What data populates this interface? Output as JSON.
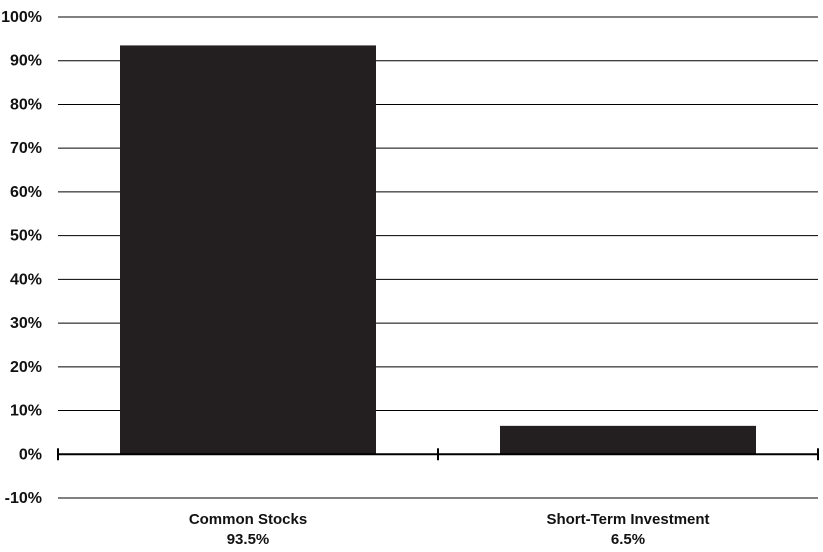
{
  "chart_data": {
    "type": "bar",
    "title": "",
    "xlabel": "",
    "ylabel": "",
    "categories": [
      "Common Stocks",
      "Short-Term Investment"
    ],
    "value_labels": [
      "93.5%",
      "6.5%"
    ],
    "values": [
      93.5,
      6.5
    ],
    "ylim": [
      -10,
      100
    ],
    "yticks": [
      -10,
      0,
      10,
      20,
      30,
      40,
      50,
      60,
      70,
      80,
      90,
      100
    ],
    "ytick_labels": [
      "-10%",
      "0%",
      "10%",
      "20%",
      "30%",
      "40%",
      "50%",
      "60%",
      "70%",
      "80%",
      "90%",
      "100%"
    ],
    "grid": true,
    "legend": "none",
    "colors": {
      "bar": "#231f20",
      "grid": "#000000",
      "text": "#111111"
    }
  }
}
